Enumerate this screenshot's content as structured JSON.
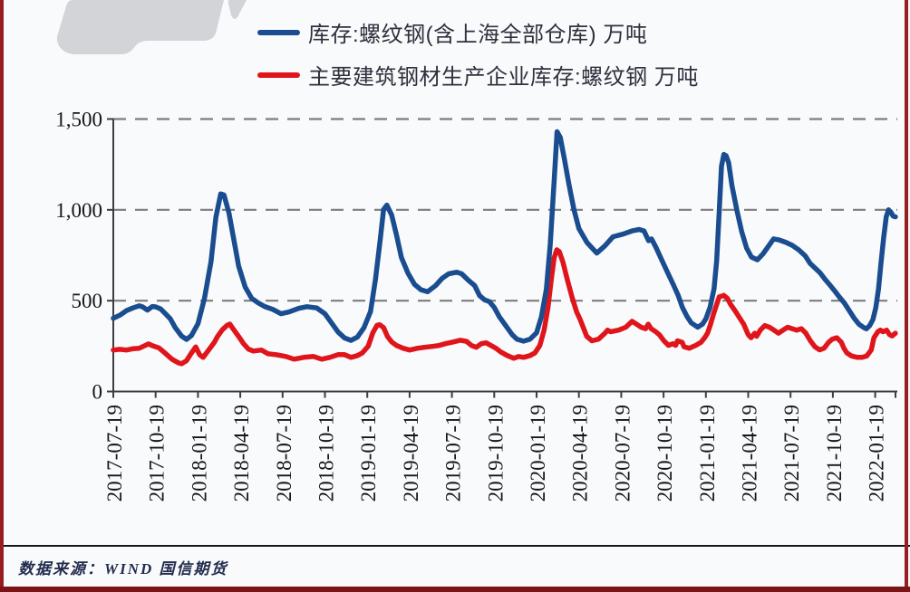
{
  "page": {
    "background": "#f9fafb",
    "side_border_color": "#961d22",
    "bottom_border_color": "#7c1317",
    "watermark_color": "#d2d4d7"
  },
  "legend": [
    {
      "label": "库存:螺纹钢(含上海全部仓库) 万吨",
      "color": "#1a4d8f"
    },
    {
      "label": "主要建筑钢材生产企业库存:螺纹钢 万吨",
      "color": "#e0151c"
    }
  ],
  "source_note": "数据来源：WIND  国信期货",
  "chart_data": {
    "type": "line",
    "title": "",
    "xlabel": "",
    "ylabel": "",
    "x_unit": "weeks since 2017-07-19 (13 weeks per labeled tick)",
    "x_tick_labels": [
      "2017-07-19",
      "2017-10-19",
      "2018-01-19",
      "2018-04-19",
      "2018-07-19",
      "2018-10-19",
      "2019-01-19",
      "2019-04-19",
      "2019-07-19",
      "2019-10-19",
      "2020-01-19",
      "2020-04-19",
      "2020-07-19",
      "2020-10-19",
      "2021-01-19",
      "2021-04-19",
      "2021-07-19",
      "2021-10-19",
      "2022-01-19"
    ],
    "weeks_per_tick": 13,
    "ylim": [
      0,
      1500
    ],
    "y_ticks": [
      0,
      500,
      1000,
      1500
    ],
    "y_tick_labels": [
      "0",
      "500",
      "1,000",
      "1,500"
    ],
    "grid": "horizontal dashed at 500/1000/1500",
    "legend_position": "top",
    "series": [
      {
        "name": "库存:螺纹钢(含上海全部仓库) 万吨",
        "color": "#1a4d8f",
        "points": [
          [
            0,
            403
          ],
          [
            2,
            420
          ],
          [
            4,
            445
          ],
          [
            6,
            460
          ],
          [
            8,
            472
          ],
          [
            9,
            466
          ],
          [
            10.5,
            448
          ],
          [
            12,
            468
          ],
          [
            13,
            466
          ],
          [
            14.5,
            455
          ],
          [
            16,
            428
          ],
          [
            17.5,
            400
          ],
          [
            19,
            352
          ],
          [
            21,
            305
          ],
          [
            22.5,
            287
          ],
          [
            24,
            308
          ],
          [
            26,
            373
          ],
          [
            28,
            513
          ],
          [
            30,
            715
          ],
          [
            31.5,
            960
          ],
          [
            33,
            1088
          ],
          [
            34,
            1082
          ],
          [
            35.5,
            985
          ],
          [
            37,
            838
          ],
          [
            38.5,
            690
          ],
          [
            40.5,
            575
          ],
          [
            42.5,
            513
          ],
          [
            44.5,
            488
          ],
          [
            46.5,
            468
          ],
          [
            49,
            452
          ],
          [
            51.5,
            428
          ],
          [
            54,
            438
          ],
          [
            57,
            458
          ],
          [
            59.5,
            467
          ],
          [
            62.5,
            460
          ],
          [
            65,
            428
          ],
          [
            67,
            378
          ],
          [
            69,
            328
          ],
          [
            71,
            295
          ],
          [
            73,
            281
          ],
          [
            75,
            300
          ],
          [
            77,
            352
          ],
          [
            79,
            440
          ],
          [
            80.5,
            615
          ],
          [
            82,
            840
          ],
          [
            83,
            1002
          ],
          [
            84,
            1026
          ],
          [
            85.5,
            972
          ],
          [
            87,
            860
          ],
          [
            88.5,
            737
          ],
          [
            90.5,
            652
          ],
          [
            92.5,
            590
          ],
          [
            94.5,
            560
          ],
          [
            96.5,
            549
          ],
          [
            99,
            583
          ],
          [
            101,
            623
          ],
          [
            103,
            648
          ],
          [
            105.5,
            657
          ],
          [
            107,
            648
          ],
          [
            109,
            613
          ],
          [
            111,
            583
          ],
          [
            112.5,
            528
          ],
          [
            114,
            505
          ],
          [
            115.5,
            495
          ],
          [
            117,
            463
          ],
          [
            118.5,
            413
          ],
          [
            120.5,
            363
          ],
          [
            122.5,
            313
          ],
          [
            124,
            288
          ],
          [
            126,
            277
          ],
          [
            128,
            288
          ],
          [
            130,
            323
          ],
          [
            131.5,
            413
          ],
          [
            133,
            563
          ],
          [
            134.2,
            812
          ],
          [
            135.4,
            1160
          ],
          [
            136.3,
            1430
          ],
          [
            137.3,
            1398
          ],
          [
            138.5,
            1285
          ],
          [
            140,
            1135
          ],
          [
            141.5,
            1000
          ],
          [
            143,
            897
          ],
          [
            145.5,
            820
          ],
          [
            148.5,
            762
          ],
          [
            151,
            802
          ],
          [
            153.5,
            852
          ],
          [
            156.5,
            866
          ],
          [
            159.5,
            885
          ],
          [
            161.5,
            892
          ],
          [
            163,
            884
          ],
          [
            164.4,
            830
          ],
          [
            165.3,
            840
          ],
          [
            166.6,
            796
          ],
          [
            168.5,
            722
          ],
          [
            170.5,
            645
          ],
          [
            172,
            588
          ],
          [
            173.5,
            528
          ],
          [
            174.8,
            463
          ],
          [
            176.2,
            413
          ],
          [
            177.5,
            378
          ],
          [
            179.5,
            354
          ],
          [
            181,
            372
          ],
          [
            182,
            400
          ],
          [
            183.3,
            465
          ],
          [
            184.5,
            565
          ],
          [
            185.3,
            720
          ],
          [
            186,
            960
          ],
          [
            186.8,
            1240
          ],
          [
            187.5,
            1305
          ],
          [
            188.2,
            1298
          ],
          [
            189,
            1260
          ],
          [
            190,
            1135
          ],
          [
            191.5,
            1000
          ],
          [
            193,
            880
          ],
          [
            194.5,
            790
          ],
          [
            196,
            740
          ],
          [
            197.8,
            725
          ],
          [
            199.5,
            757
          ],
          [
            201,
            795
          ],
          [
            202.8,
            840
          ],
          [
            204.5,
            834
          ],
          [
            206.5,
            822
          ],
          [
            208.5,
            805
          ],
          [
            210.5,
            780
          ],
          [
            212.5,
            747
          ],
          [
            214,
            705
          ],
          [
            215.5,
            680
          ],
          [
            217,
            655
          ],
          [
            218.5,
            620
          ],
          [
            220,
            588
          ],
          [
            221.5,
            555
          ],
          [
            223,
            520
          ],
          [
            224.5,
            488
          ],
          [
            226,
            446
          ],
          [
            227.5,
            404
          ],
          [
            229,
            371
          ],
          [
            230.5,
            352
          ],
          [
            231.3,
            345
          ],
          [
            232.3,
            363
          ],
          [
            233.3,
            396
          ],
          [
            234.2,
            463
          ],
          [
            235,
            562
          ],
          [
            235.8,
            712
          ],
          [
            236.6,
            845
          ],
          [
            237.4,
            962
          ],
          [
            238.1,
            1000
          ],
          [
            238.8,
            988
          ],
          [
            239.5,
            966
          ],
          [
            240.2,
            962
          ]
        ]
      },
      {
        "name": "主要建筑钢材生产企业库存:螺纹钢 万吨",
        "color": "#e0151c",
        "points": [
          [
            0,
            228
          ],
          [
            2,
            232
          ],
          [
            4,
            228
          ],
          [
            6,
            235
          ],
          [
            8,
            238
          ],
          [
            10,
            255
          ],
          [
            10.8,
            262
          ],
          [
            12,
            252
          ],
          [
            14,
            240
          ],
          [
            16,
            210
          ],
          [
            18,
            178
          ],
          [
            20,
            158
          ],
          [
            21,
            153
          ],
          [
            22.5,
            170
          ],
          [
            24,
            212
          ],
          [
            25.3,
            245
          ],
          [
            26.5,
            203
          ],
          [
            27.6,
            188
          ],
          [
            29,
            222
          ],
          [
            31,
            270
          ],
          [
            32,
            303
          ],
          [
            33.5,
            340
          ],
          [
            35,
            365
          ],
          [
            35.8,
            371
          ],
          [
            37,
            340
          ],
          [
            38.5,
            303
          ],
          [
            40,
            263
          ],
          [
            41.5,
            233
          ],
          [
            43,
            223
          ],
          [
            45.5,
            228
          ],
          [
            47.5,
            208
          ],
          [
            50,
            203
          ],
          [
            53,
            193
          ],
          [
            55.5,
            178
          ],
          [
            58.5,
            188
          ],
          [
            61.5,
            193
          ],
          [
            64,
            178
          ],
          [
            66.5,
            188
          ],
          [
            69,
            203
          ],
          [
            71,
            203
          ],
          [
            73,
            188
          ],
          [
            75,
            198
          ],
          [
            76.5,
            213
          ],
          [
            78.3,
            250
          ],
          [
            79.7,
            323
          ],
          [
            81,
            365
          ],
          [
            81.8,
            368
          ],
          [
            83,
            352
          ],
          [
            84.2,
            303
          ],
          [
            85.5,
            273
          ],
          [
            87,
            253
          ],
          [
            89,
            238
          ],
          [
            91,
            228
          ],
          [
            93.5,
            238
          ],
          [
            95.5,
            243
          ],
          [
            98,
            248
          ],
          [
            100,
            253
          ],
          [
            102,
            263
          ],
          [
            104.5,
            273
          ],
          [
            106.5,
            282
          ],
          [
            108.5,
            276
          ],
          [
            110,
            253
          ],
          [
            111.5,
            243
          ],
          [
            113,
            263
          ],
          [
            114.5,
            268
          ],
          [
            116,
            253
          ],
          [
            117.5,
            238
          ],
          [
            119,
            218
          ],
          [
            121,
            198
          ],
          [
            123,
            183
          ],
          [
            124.5,
            193
          ],
          [
            126,
            188
          ],
          [
            128,
            198
          ],
          [
            129.5,
            213
          ],
          [
            131,
            253
          ],
          [
            132.3,
            338
          ],
          [
            133.5,
            463
          ],
          [
            134.5,
            615
          ],
          [
            135.4,
            737
          ],
          [
            136.2,
            780
          ],
          [
            137,
            770
          ],
          [
            138.1,
            712
          ],
          [
            139.5,
            612
          ],
          [
            141,
            513
          ],
          [
            142.3,
            438
          ],
          [
            143.4,
            396
          ],
          [
            145.4,
            304
          ],
          [
            147,
            279
          ],
          [
            149,
            288
          ],
          [
            151,
            321
          ],
          [
            151.8,
            338
          ],
          [
            152.7,
            329
          ],
          [
            155.2,
            338
          ],
          [
            157.4,
            354
          ],
          [
            159.3,
            386
          ],
          [
            160.7,
            371
          ],
          [
            162.1,
            354
          ],
          [
            163.5,
            346
          ],
          [
            164.3,
            371
          ],
          [
            165.2,
            346
          ],
          [
            166.6,
            329
          ],
          [
            167.7,
            313
          ],
          [
            169.1,
            279
          ],
          [
            170.5,
            254
          ],
          [
            171.9,
            263
          ],
          [
            172.7,
            254
          ],
          [
            173.3,
            279
          ],
          [
            174.7,
            271
          ],
          [
            175.3,
            246
          ],
          [
            176.9,
            238
          ],
          [
            178.9,
            254
          ],
          [
            180.5,
            271
          ],
          [
            181.6,
            296
          ],
          [
            182.5,
            321
          ],
          [
            183.3,
            363
          ],
          [
            184.4,
            429
          ],
          [
            185.3,
            479
          ],
          [
            186.1,
            521
          ],
          [
            187.5,
            529
          ],
          [
            188.6,
            513
          ],
          [
            189.6,
            479
          ],
          [
            190.9,
            446
          ],
          [
            192.2,
            410
          ],
          [
            193.6,
            371
          ],
          [
            195,
            313
          ],
          [
            195.9,
            296
          ],
          [
            197,
            321
          ],
          [
            197.6,
            304
          ],
          [
            198.7,
            338
          ],
          [
            200.1,
            363
          ],
          [
            201.5,
            354
          ],
          [
            202.9,
            338
          ],
          [
            204.3,
            321
          ],
          [
            205.7,
            338
          ],
          [
            207.1,
            354
          ],
          [
            208.5,
            346
          ],
          [
            209.9,
            338
          ],
          [
            211.3,
            346
          ],
          [
            212.7,
            321
          ],
          [
            214.1,
            279
          ],
          [
            215.5,
            246
          ],
          [
            216.9,
            229
          ],
          [
            218.3,
            238
          ],
          [
            219.7,
            271
          ],
          [
            220.8,
            288
          ],
          [
            222.2,
            296
          ],
          [
            223.6,
            271
          ],
          [
            224.4,
            238
          ],
          [
            225.3,
            213
          ],
          [
            226.7,
            196
          ],
          [
            228.5,
            188
          ],
          [
            230,
            188
          ],
          [
            231.4,
            196
          ],
          [
            232.8,
            229
          ],
          [
            233.6,
            296
          ],
          [
            234.8,
            329
          ],
          [
            235.6,
            338
          ],
          [
            236.4,
            329
          ],
          [
            237.5,
            338
          ],
          [
            238.4,
            313
          ],
          [
            239.2,
            306
          ],
          [
            240.2,
            321
          ]
        ]
      }
    ]
  }
}
